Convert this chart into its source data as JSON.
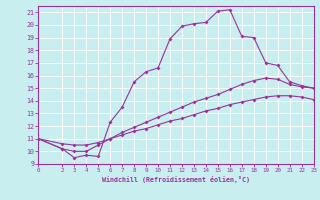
{
  "xlabel": "Windchill (Refroidissement éolien,°C)",
  "bg_color": "#c8eef0",
  "line_color": "#993399",
  "grid_color": "#ffffff",
  "xlim": [
    0,
    23
  ],
  "ylim": [
    9,
    21.5
  ],
  "xticks": [
    0,
    2,
    3,
    4,
    5,
    6,
    7,
    8,
    9,
    10,
    11,
    12,
    13,
    14,
    15,
    16,
    17,
    18,
    19,
    20,
    21,
    22,
    23
  ],
  "yticks": [
    9,
    10,
    11,
    12,
    13,
    14,
    15,
    16,
    17,
    18,
    19,
    20,
    21
  ],
  "line1_x": [
    0,
    2,
    3,
    4,
    5,
    6,
    7,
    8,
    9,
    10,
    11,
    12,
    13,
    14,
    15,
    16,
    17,
    18,
    19,
    20,
    21,
    22,
    23
  ],
  "line1_y": [
    11,
    10.2,
    9.5,
    9.7,
    9.6,
    12.3,
    13.5,
    15.5,
    16.3,
    16.6,
    18.9,
    19.9,
    20.1,
    20.2,
    21.1,
    21.2,
    19.1,
    19.0,
    17.0,
    16.8,
    15.5,
    15.2,
    15.0
  ],
  "line2_x": [
    0,
    2,
    3,
    4,
    5,
    6,
    7,
    8,
    9,
    10,
    11,
    12,
    13,
    14,
    15,
    16,
    17,
    18,
    19,
    20,
    21,
    22,
    23
  ],
  "line2_y": [
    11,
    10.2,
    10.0,
    10.0,
    10.5,
    11.0,
    11.5,
    11.9,
    12.3,
    12.7,
    13.1,
    13.5,
    13.9,
    14.2,
    14.5,
    14.9,
    15.3,
    15.6,
    15.8,
    15.7,
    15.3,
    15.1,
    15.0
  ],
  "line3_x": [
    0,
    2,
    3,
    4,
    5,
    6,
    7,
    8,
    9,
    10,
    11,
    12,
    13,
    14,
    15,
    16,
    17,
    18,
    19,
    20,
    21,
    22,
    23
  ],
  "line3_y": [
    11,
    10.6,
    10.5,
    10.5,
    10.7,
    11.0,
    11.3,
    11.6,
    11.8,
    12.1,
    12.4,
    12.6,
    12.9,
    13.2,
    13.4,
    13.7,
    13.9,
    14.1,
    14.3,
    14.4,
    14.4,
    14.3,
    14.1
  ]
}
